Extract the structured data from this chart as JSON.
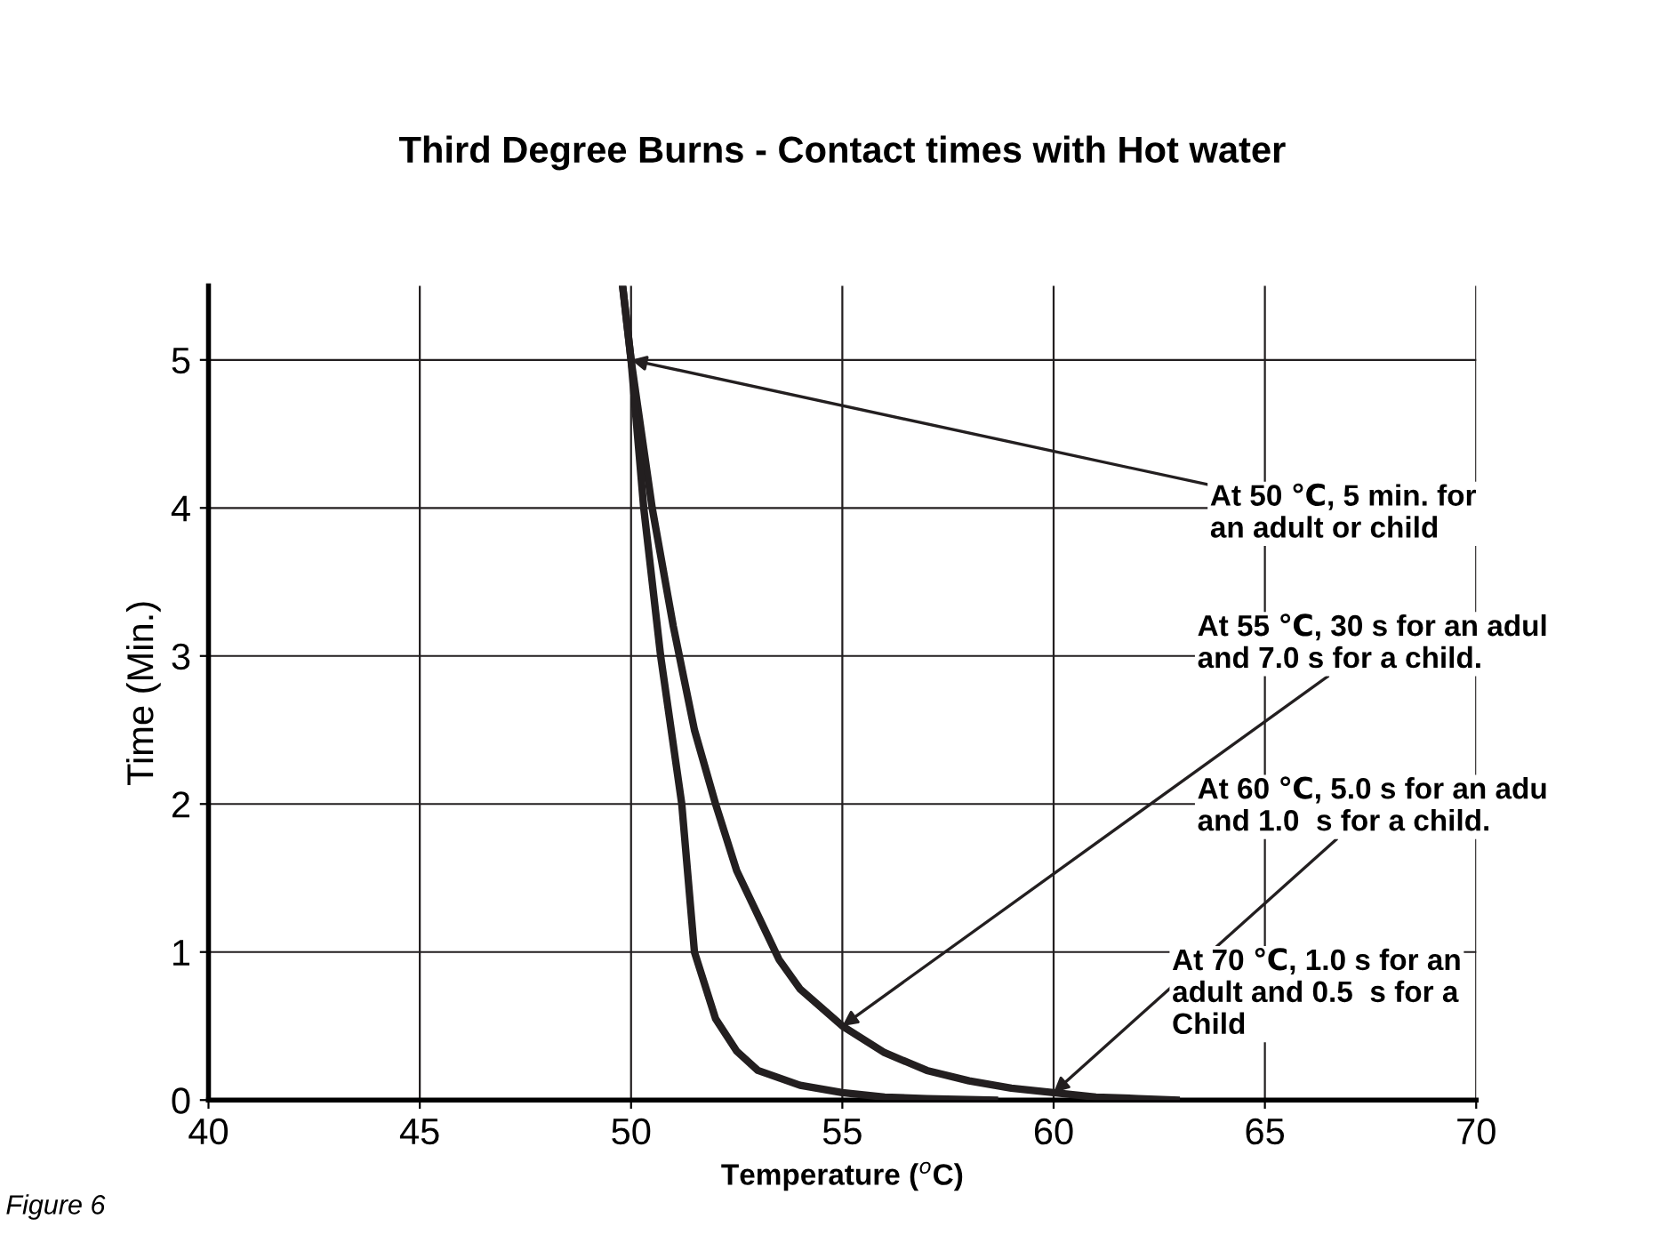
{
  "chart_data": {
    "type": "line",
    "title": "Third Degree Burns - Contact times with Hot water",
    "xlabel": "Temperature ($^{o}$C)",
    "ylabel": "Time (Min.)",
    "xlim": [
      40,
      70
    ],
    "ylim": [
      0,
      5.5
    ],
    "xticks": [
      40,
      45,
      50,
      55,
      60,
      65,
      70
    ],
    "yticks": [
      0,
      1,
      2,
      3,
      4,
      5
    ],
    "grid": true,
    "legend": false,
    "marker": "none",
    "line_style": "solid",
    "series": [
      {
        "color": "#231f20",
        "x": [
          49.8,
          50,
          50.5,
          51,
          51.5,
          52,
          52.5,
          53,
          53.5,
          54,
          55,
          56,
          57,
          58,
          59,
          60,
          61,
          62,
          62.9
        ],
        "values": [
          5.5,
          5.0,
          4.0,
          3.2,
          2.5,
          2.0,
          1.55,
          1.25,
          0.95,
          0.75,
          0.5,
          0.32,
          0.2,
          0.13,
          0.08,
          0.05,
          0.02,
          0.01,
          0.0
        ]
      },
      {
        "color": "#231f20",
        "x": [
          49.8,
          50,
          50.3,
          50.7,
          51.2,
          51.5,
          52,
          52.5,
          53,
          54,
          55,
          56,
          57,
          58.6
        ],
        "values": [
          5.5,
          5.0,
          4.0,
          3.0,
          2.0,
          1.0,
          0.55,
          0.33,
          0.2,
          0.1,
          0.05,
          0.02,
          0.01,
          0.0
        ]
      }
    ],
    "annotations": [
      {
        "text": "At 50 ℃, 5 min. for\nan adult or child",
        "x": 50,
        "y": 5
      },
      {
        "text": "At 55 ℃, 30 s for an adul\nand 7.0 s for a child.",
        "x": 55,
        "y": 0.5
      },
      {
        "text": "At 60 ℃, 5.0 s for an adu\nand 1.0  s for a child.",
        "x": 60,
        "y": 0.05
      },
      "At 70 ℃, 1.0 s for an\nadult and 0.5  s for a\nChild",
      "Figure 6"
    ]
  }
}
